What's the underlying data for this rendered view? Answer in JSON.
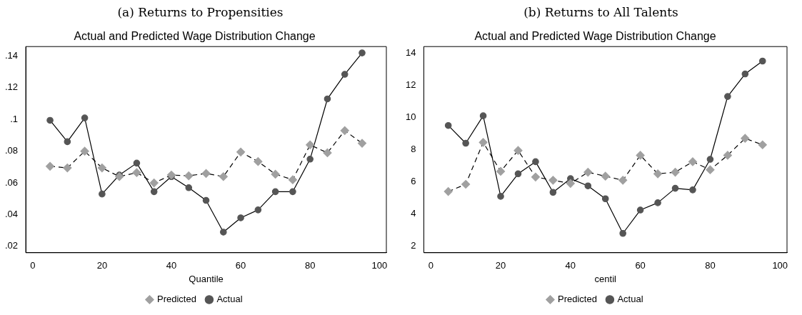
{
  "chart_data": [
    {
      "type": "line",
      "subtitle": "(a) Returns to Propensities",
      "title": "Actual and Predicted Wage Distribution Change",
      "xlabel": "Quantile",
      "x": [
        5,
        10,
        15,
        20,
        25,
        30,
        35,
        40,
        45,
        50,
        55,
        60,
        65,
        70,
        75,
        80,
        85,
        90,
        95
      ],
      "series": [
        {
          "name": "Actual",
          "color": "#555555",
          "marker": "circle",
          "line_style": "solid",
          "values": [
            0.0995,
            0.086,
            0.101,
            0.053,
            0.065,
            0.0725,
            0.0545,
            0.064,
            0.057,
            0.049,
            0.029,
            0.038,
            0.043,
            0.0545,
            0.0545,
            0.075,
            0.113,
            0.1285,
            0.142
          ]
        },
        {
          "name": "Predicted",
          "color": "#a0a0a0",
          "marker": "diamond",
          "line_style": "dashed",
          "values": [
            0.0705,
            0.0695,
            0.08,
            0.0695,
            0.064,
            0.0665,
            0.06,
            0.065,
            0.0645,
            0.066,
            0.064,
            0.0795,
            0.0735,
            0.0655,
            0.062,
            0.084,
            0.079,
            0.093,
            0.085
          ]
        }
      ],
      "xlim": [
        -2,
        102
      ],
      "xticks": [
        0,
        20,
        40,
        60,
        80,
        100
      ],
      "ylim": [
        0.016,
        0.146
      ],
      "yticks": [
        {
          "value": 0.02,
          "label": ".02"
        },
        {
          "value": 0.04,
          "label": ".04"
        },
        {
          "value": 0.06,
          "label": ".06"
        },
        {
          "value": 0.08,
          "label": ".08"
        },
        {
          "value": 0.1,
          "label": ".1"
        },
        {
          "value": 0.12,
          "label": ".12"
        },
        {
          "value": 0.14,
          "label": ".14"
        }
      ],
      "grid": false,
      "legend": "bottom"
    },
    {
      "type": "line",
      "subtitle": "(b) Returns to All Talents",
      "title": "Actual and Predicted Wage Distribution Change",
      "xlabel": "centil",
      "x": [
        5,
        10,
        15,
        20,
        25,
        30,
        35,
        40,
        45,
        50,
        55,
        60,
        65,
        70,
        75,
        80,
        85,
        90,
        95
      ],
      "series": [
        {
          "name": "Actual",
          "color": "#555555",
          "marker": "circle",
          "line_style": "solid",
          "values": [
            9.5,
            8.4,
            10.1,
            5.1,
            6.5,
            7.25,
            5.35,
            6.2,
            5.75,
            4.95,
            2.8,
            4.25,
            4.7,
            5.6,
            5.5,
            7.4,
            11.3,
            12.7,
            13.5
          ]
        },
        {
          "name": "Predicted",
          "color": "#a0a0a0",
          "marker": "diamond",
          "line_style": "dashed",
          "values": [
            5.4,
            5.85,
            8.45,
            6.65,
            7.95,
            6.3,
            6.1,
            5.9,
            6.6,
            6.35,
            6.1,
            7.65,
            6.5,
            6.6,
            7.25,
            6.75,
            7.65,
            8.7,
            8.3
          ]
        }
      ],
      "xlim": [
        -2,
        102
      ],
      "xticks": [
        0,
        20,
        40,
        60,
        80,
        100
      ],
      "ylim": [
        1.6,
        14.4
      ],
      "yticks": [
        2,
        4,
        6,
        8,
        10,
        12,
        14
      ],
      "grid": false,
      "legend": "bottom"
    }
  ]
}
